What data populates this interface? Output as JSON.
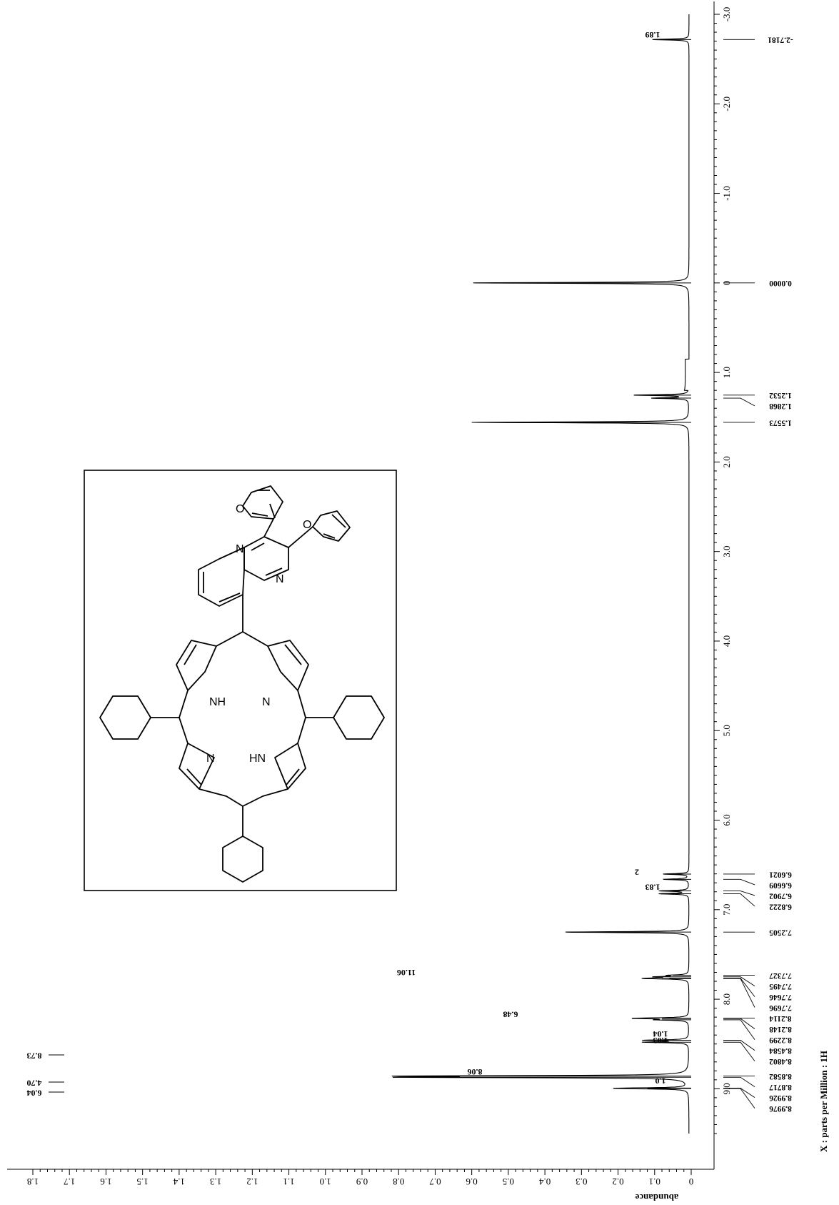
{
  "chart_data": {
    "type": "line",
    "orientation": "rotated-90",
    "xlabel": "X : parts per Million : 1H",
    "ylabel": "abundance",
    "xlim": [
      -3.0,
      9.5
    ],
    "ylim": [
      0,
      1.8
    ],
    "x_ticks": [
      "-3.0",
      "-2.0",
      "-1.0",
      "0",
      "1.0",
      "2.0",
      "3.0",
      "4.0",
      "5.0",
      "6.0",
      "7.0",
      "8.0",
      "9.0"
    ],
    "y_ticks": [
      "0",
      "0.1",
      "0.2",
      "0.3",
      "0.4",
      "0.5",
      "0.6",
      "0.7",
      "0.8",
      "0.9",
      "1.0",
      "1.1",
      "1.2",
      "1.3",
      "1.4",
      "1.5",
      "1.6",
      "1.7",
      "1.8"
    ],
    "peaks": [
      {
        "ppm": -2.7181,
        "height": 0.1
      },
      {
        "ppm": 0.0,
        "height": 0.59
      },
      {
        "ppm": 1.2532,
        "height": 0.15
      },
      {
        "ppm": 1.2868,
        "height": 0.1
      },
      {
        "ppm": 1.5573,
        "height": 0.6
      },
      {
        "ppm": 6.6021,
        "height": 0.07
      },
      {
        "ppm": 6.6609,
        "height": 0.07
      },
      {
        "ppm": 6.7902,
        "height": 0.08
      },
      {
        "ppm": 6.8222,
        "height": 0.08
      },
      {
        "ppm": 7.2505,
        "height": 0.34
      },
      {
        "ppm": 7.7327,
        "height": 0.05
      },
      {
        "ppm": 7.7495,
        "height": 0.08
      },
      {
        "ppm": 7.7646,
        "height": 0.06
      },
      {
        "ppm": 7.7696,
        "height": 0.08
      },
      {
        "ppm": 8.2114,
        "height": 0.08
      },
      {
        "ppm": 8.2148,
        "height": 0.08
      },
      {
        "ppm": 8.2299,
        "height": 0.08
      },
      {
        "ppm": 8.4584,
        "height": 0.12
      },
      {
        "ppm": 8.4802,
        "height": 0.12
      },
      {
        "ppm": 8.8582,
        "height": 0.7
      },
      {
        "ppm": 8.8717,
        "height": 0.7
      },
      {
        "ppm": 8.9926,
        "height": 0.12
      },
      {
        "ppm": 8.9976,
        "height": 0.12
      }
    ],
    "peak_labels": [
      "-2.7181",
      "0.0000",
      "1.2532",
      "1.2868",
      "1.5573",
      "6.6021",
      "6.6609",
      "6.7902",
      "6.8222",
      "7.2505",
      "7.7327",
      "7.7495",
      "7.7646",
      "7.7696",
      "8.2114",
      "8.2148",
      "8.2299",
      "8.4584",
      "8.4802",
      "8.8582",
      "8.8717",
      "8.9926",
      "8.9976"
    ],
    "integrals": [
      {
        "ppm": -2.72,
        "value": "1.89"
      },
      {
        "ppm": 6.63,
        "value": "2"
      },
      {
        "ppm": 6.8,
        "value": "1.83"
      },
      {
        "ppm": 7.75,
        "value": "11.06"
      },
      {
        "ppm": 8.22,
        "value": "6.48"
      },
      {
        "ppm": 8.44,
        "value": "1.04"
      },
      {
        "ppm": 8.51,
        "value": "1.03"
      },
      {
        "ppm": 8.86,
        "value": "8.06"
      },
      {
        "ppm": 8.96,
        "value": "1.0"
      }
    ],
    "integral_tick_labels": [
      "8.73",
      "4.70",
      "6.04"
    ]
  },
  "structure": {
    "atom_labels": [
      "O",
      "O",
      "N",
      "N",
      "NH",
      "N",
      "N",
      "HN"
    ]
  }
}
